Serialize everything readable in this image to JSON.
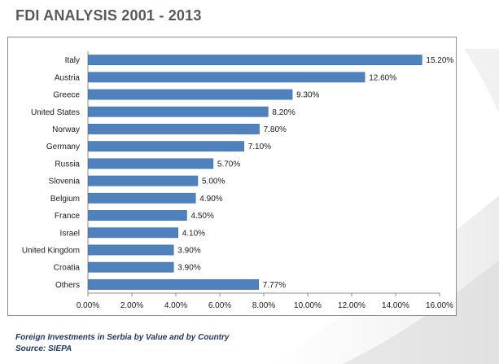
{
  "page": {
    "title": "FDI ANALYSIS 2001 - 2013",
    "caption_line_1": "Foreign Investments in Serbia by Value and by Country",
    "caption_line_2": "Source: SIEPA"
  },
  "colors": {
    "bar": "#4f81bd",
    "bar_stroke": "#3a6aa6",
    "title": "#595959",
    "caption": "#1f3864",
    "axis": "#8c8c8c"
  },
  "chart_data": {
    "type": "bar",
    "orientation": "horizontal",
    "categories": [
      "Italy",
      "Austria",
      "Greece",
      "United States",
      "Norway",
      "Germany",
      "Russia",
      "Slovenia",
      "Belgium",
      "France",
      "Israel",
      "United Kingdom",
      "Croatia",
      "Others"
    ],
    "values": [
      15.2,
      12.6,
      9.3,
      8.2,
      7.8,
      7.1,
      5.7,
      5.0,
      4.9,
      4.5,
      4.1,
      3.9,
      3.9,
      7.77
    ],
    "value_labels": [
      "15.20%",
      "12.60%",
      "9.30%",
      "8.20%",
      "7.80%",
      "7.10%",
      "5.70%",
      "5.00%",
      "4.90%",
      "4.50%",
      "4.10%",
      "3.90%",
      "3.90%",
      "7.77%"
    ],
    "xlim": [
      0,
      16
    ],
    "x_ticks": [
      0,
      2,
      4,
      6,
      8,
      10,
      12,
      14,
      16
    ],
    "x_tick_labels": [
      "0.00%",
      "2.00%",
      "4.00%",
      "6.00%",
      "8.00%",
      "10.00%",
      "12.00%",
      "14.00%",
      "16.00%"
    ],
    "grid": false,
    "legend": "none",
    "title": "",
    "xlabel": "",
    "ylabel": ""
  }
}
